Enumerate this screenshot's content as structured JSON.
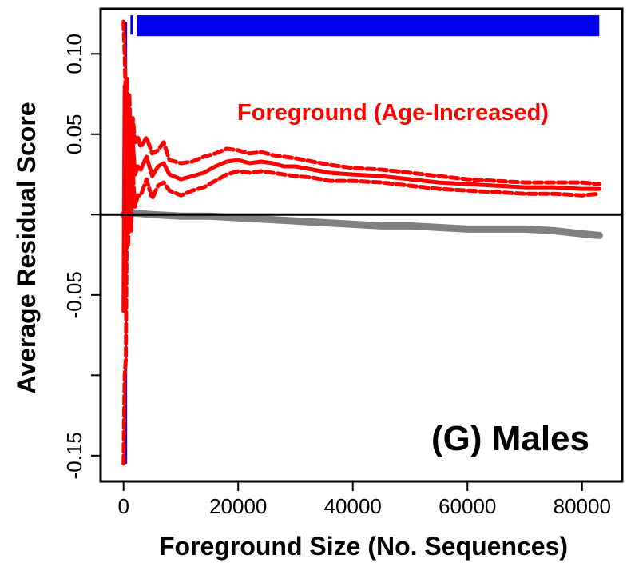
{
  "chart_data": {
    "type": "line",
    "title": "",
    "xlabel": "Foreground Size (No. Sequences)",
    "ylabel": "Average Residual Score",
    "xlim": [
      -4000,
      87000
    ],
    "ylim": [
      -0.166,
      0.128
    ],
    "x_ticks": [
      {
        "value": 0,
        "label": "0"
      },
      {
        "value": 20000,
        "label": "20000"
      },
      {
        "value": 40000,
        "label": "40000"
      },
      {
        "value": 60000,
        "label": "60000"
      },
      {
        "value": 80000,
        "label": "80000"
      }
    ],
    "y_ticks": [
      {
        "value": -0.15,
        "label": "-0.15"
      },
      {
        "value": -0.1,
        "label": ""
      },
      {
        "value": -0.05,
        "label": "-0.05"
      },
      {
        "value": 0.0,
        "label": ""
      },
      {
        "value": 0.05,
        "label": "0.05"
      },
      {
        "value": 0.1,
        "label": "0.10"
      }
    ],
    "reference_line_y": 0,
    "annotations": {
      "foreground_label": "Foreground (Age-Increased)",
      "panel_label": "(G) Males"
    },
    "series": [
      {
        "role": "foreground-mean",
        "color": "#ff0000",
        "style": "solid",
        "x": [
          0,
          200,
          400,
          600,
          800,
          1000,
          1300,
          1600,
          2000,
          2500,
          3000,
          4000,
          5000,
          6000,
          7000,
          8000,
          10000,
          12000,
          14000,
          16000,
          18000,
          20000,
          22000,
          24000,
          26000,
          28000,
          30000,
          33000,
          36000,
          40000,
          45000,
          50000,
          55000,
          60000,
          65000,
          70000,
          75000,
          80000,
          83000
        ],
        "y": [
          -0.06,
          0.08,
          -0.02,
          0.07,
          0.02,
          0.05,
          0.01,
          0.045,
          0.025,
          0.03,
          0.028,
          0.036,
          0.024,
          0.03,
          0.032,
          0.025,
          0.022,
          0.024,
          0.026,
          0.03,
          0.033,
          0.034,
          0.032,
          0.033,
          0.032,
          0.03,
          0.03,
          0.028,
          0.026,
          0.025,
          0.024,
          0.022,
          0.02,
          0.019,
          0.018,
          0.017,
          0.017,
          0.016,
          0.016
        ]
      },
      {
        "role": "foreground-upper-bound",
        "color": "#ff0000",
        "style": "dashed",
        "x": [
          0,
          200,
          400,
          600,
          800,
          1000,
          1300,
          1600,
          2000,
          2500,
          3000,
          4000,
          5000,
          6000,
          7000,
          8000,
          10000,
          12000,
          14000,
          16000,
          18000,
          20000,
          22000,
          24000,
          26000,
          28000,
          30000,
          33000,
          36000,
          40000,
          45000,
          50000,
          55000,
          60000,
          65000,
          70000,
          75000,
          80000,
          83000
        ],
        "y": [
          0.12,
          0.1,
          0.07,
          0.085,
          0.05,
          0.075,
          0.035,
          0.06,
          0.045,
          0.048,
          0.042,
          0.048,
          0.038,
          0.04,
          0.045,
          0.034,
          0.032,
          0.033,
          0.036,
          0.038,
          0.041,
          0.04,
          0.038,
          0.039,
          0.037,
          0.036,
          0.035,
          0.033,
          0.031,
          0.029,
          0.028,
          0.026,
          0.024,
          0.022,
          0.021,
          0.02,
          0.02,
          0.02,
          0.019
        ]
      },
      {
        "role": "foreground-lower-bound",
        "color": "#ff0000",
        "style": "dashed",
        "x": [
          0,
          200,
          400,
          600,
          800,
          1000,
          1300,
          1600,
          2000,
          2500,
          3000,
          4000,
          5000,
          6000,
          7000,
          8000,
          10000,
          12000,
          14000,
          16000,
          18000,
          20000,
          22000,
          24000,
          26000,
          28000,
          30000,
          33000,
          36000,
          40000,
          45000,
          50000,
          55000,
          60000,
          65000,
          70000,
          75000,
          80000,
          83000
        ],
        "y": [
          -0.155,
          -0.1,
          -0.09,
          0.02,
          -0.02,
          0.02,
          -0.01,
          0.025,
          0.005,
          0.012,
          0.012,
          0.022,
          0.01,
          0.018,
          0.02,
          0.015,
          0.012,
          0.015,
          0.017,
          0.021,
          0.025,
          0.027,
          0.026,
          0.027,
          0.026,
          0.025,
          0.024,
          0.023,
          0.021,
          0.021,
          0.02,
          0.018,
          0.016,
          0.015,
          0.014,
          0.013,
          0.013,
          0.012,
          0.013
        ]
      },
      {
        "role": "background",
        "color": "#808080",
        "style": "solid",
        "x": [
          0,
          2000,
          5000,
          10000,
          15000,
          20000,
          25000,
          30000,
          35000,
          40000,
          45000,
          50000,
          55000,
          60000,
          65000,
          70000,
          75000,
          80000,
          83000
        ],
        "y": [
          0.0,
          0.001,
          0.0,
          -0.001,
          -0.001,
          -0.002,
          -0.003,
          -0.004,
          -0.005,
          -0.006,
          -0.007,
          -0.007,
          -0.008,
          -0.009,
          -0.009,
          -0.009,
          -0.01,
          -0.012,
          -0.013
        ]
      }
    ],
    "significance_bars": [
      {
        "x_start": 200,
        "x_end": 200,
        "y_top": 0.12,
        "y_bottom": -0.155,
        "color": "#0000ee"
      },
      {
        "x_start": 1200,
        "x_end": 1600,
        "y_top": 0.124,
        "y_bottom": 0.112,
        "color": "#0000ee"
      },
      {
        "x_start": 2300,
        "x_end": 83000,
        "y_top": 0.124,
        "y_bottom": 0.111,
        "color": "#0000ee"
      }
    ]
  }
}
